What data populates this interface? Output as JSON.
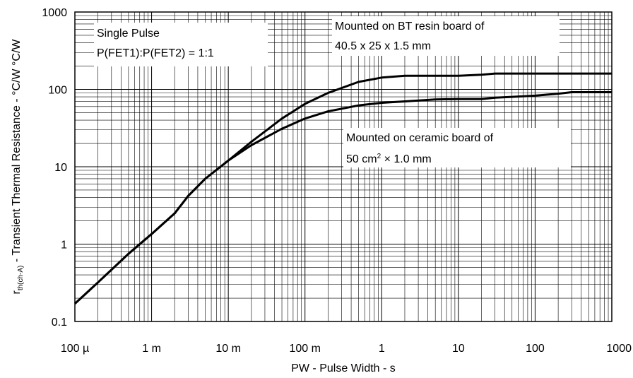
{
  "chart_data": {
    "type": "line",
    "title": "",
    "x_scale": "log",
    "y_scale": "log",
    "xlim": [
      0.0001,
      1000
    ],
    "ylim": [
      0.1,
      1000
    ],
    "grid": true,
    "xlabel": "PW - Pulse Width - s",
    "ylabel_main": "r",
    "ylabel_sub": "th(ch-A)",
    "ylabel_rest": " - Transient Thermal Resistance - °C/W °C/W",
    "x_ticks": [
      {
        "value": 0.0001,
        "label": "100 µ"
      },
      {
        "value": 0.001,
        "label": "1 m"
      },
      {
        "value": 0.01,
        "label": "10 m"
      },
      {
        "value": 0.1,
        "label": "100 m"
      },
      {
        "value": 1,
        "label": "1"
      },
      {
        "value": 10,
        "label": "10"
      },
      {
        "value": 100,
        "label": "100"
      },
      {
        "value": 1000,
        "label": "1000"
      }
    ],
    "y_ticks": [
      {
        "value": 0.1,
        "label": "0.1"
      },
      {
        "value": 1,
        "label": "1"
      },
      {
        "value": 10,
        "label": "10"
      },
      {
        "value": 100,
        "label": "100"
      },
      {
        "value": 1000,
        "label": "1000"
      }
    ],
    "series": [
      {
        "name": "Mounted on BT resin board of 40.5 x 25 x 1.5 mm",
        "x": [
          0.0001,
          0.0002,
          0.0005,
          0.001,
          0.002,
          0.003,
          0.005,
          0.01,
          0.02,
          0.05,
          0.1,
          0.2,
          0.5,
          1,
          2,
          5,
          10,
          20,
          30,
          50,
          100,
          200,
          500,
          1000
        ],
        "y": [
          0.17,
          0.32,
          0.75,
          1.35,
          2.5,
          4.2,
          7,
          12,
          21,
          42,
          65,
          90,
          125,
          142,
          150,
          150,
          150,
          155,
          160,
          160,
          160,
          160,
          160,
          160
        ]
      },
      {
        "name": "Mounted on ceramic board of 50 cm² × 1.0 mm",
        "x": [
          0.0001,
          0.0002,
          0.0005,
          0.001,
          0.002,
          0.003,
          0.005,
          0.01,
          0.02,
          0.05,
          0.1,
          0.2,
          0.5,
          1,
          2,
          5,
          10,
          20,
          30,
          50,
          100,
          200,
          300,
          1000
        ],
        "y": [
          0.17,
          0.32,
          0.75,
          1.35,
          2.5,
          4.2,
          7,
          12,
          19,
          31,
          42,
          52,
          62,
          67,
          70,
          74,
          75,
          75,
          78,
          80,
          83,
          88,
          92,
          92
        ]
      }
    ],
    "annotations": [
      {
        "id": "pulse",
        "lines": [
          {
            "text": "Single Pulse"
          },
          {
            "text": "P(FET1):P(FET2) = 1:1"
          }
        ]
      },
      {
        "id": "bt",
        "lines": [
          {
            "text": "Mounted on BT resin board of"
          },
          {
            "text": "40.5 x 25 x 1.5 mm"
          }
        ]
      },
      {
        "id": "ceramic",
        "lines": [
          {
            "text": "Mounted on ceramic board of"
          },
          {
            "pre": "50 cm",
            "sup": "2",
            "post": " × 1.0 mm"
          }
        ]
      }
    ]
  }
}
